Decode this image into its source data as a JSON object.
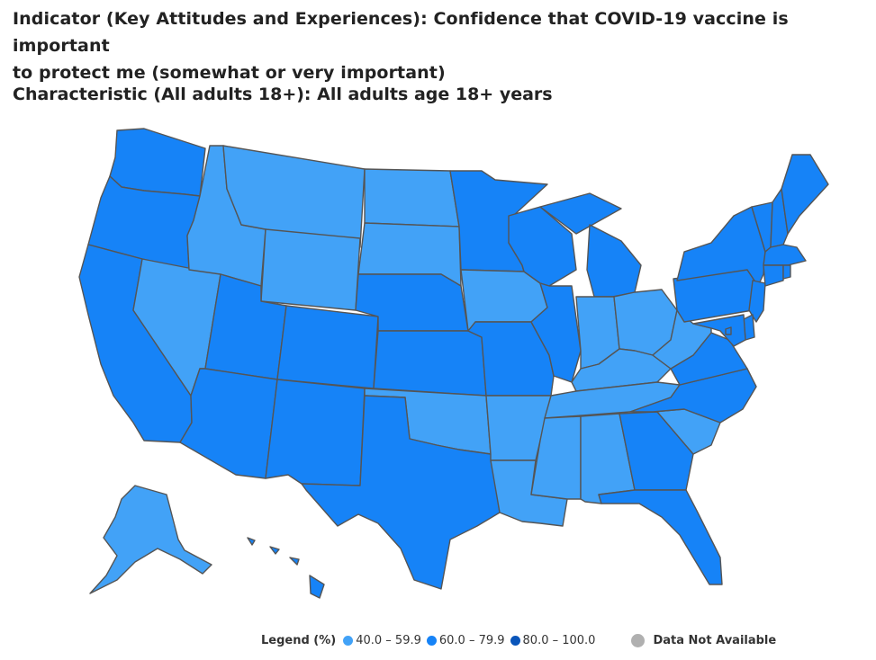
{
  "header": {
    "indicator_line1": "Indicator (Key Attitudes and Experiences):  Confidence that COVID-19 vaccine is important",
    "indicator_line2": "to protect me (somewhat or very important)",
    "characteristic": "Characteristic (All adults 18+):  All adults age 18+ years"
  },
  "legend": {
    "title": "Legend (%)",
    "items": [
      {
        "label": "40.0 – 59.9",
        "color": "#42a2f7"
      },
      {
        "label": "60.0 – 79.9",
        "color": "#1683f7"
      },
      {
        "label": "80.0 – 100.0",
        "color": "#0a55ba"
      }
    ],
    "not_available": {
      "label": "Data Not Available",
      "color": "#b0b0b0"
    }
  },
  "colors": {
    "bin_40_59": "#42a2f7",
    "bin_60_79": "#1683f7",
    "bin_80_100": "#0a55ba",
    "border": "#555555"
  },
  "states": {
    "WA": "60.0 – 79.9",
    "OR": "60.0 – 79.9",
    "CA": "60.0 – 79.9",
    "NV": "40.0 – 59.9",
    "ID": "40.0 – 59.9",
    "MT": "40.0 – 59.9",
    "WY": "40.0 – 59.9",
    "UT": "60.0 – 79.9",
    "AZ": "60.0 – 79.9",
    "CO": "60.0 – 79.9",
    "NM": "60.0 – 79.9",
    "ND": "40.0 – 59.9",
    "SD": "40.0 – 59.9",
    "NE": "60.0 – 79.9",
    "KS": "60.0 – 79.9",
    "OK": "40.0 – 59.9",
    "TX": "60.0 – 79.9",
    "MN": "60.0 – 79.9",
    "IA": "40.0 – 59.9",
    "MO": "60.0 – 79.9",
    "AR": "40.0 – 59.9",
    "LA": "40.0 – 59.9",
    "WI": "60.0 – 79.9",
    "IL": "60.0 – 79.9",
    "MI": "60.0 – 79.9",
    "IN": "40.0 – 59.9",
    "OH": "40.0 – 59.9",
    "KY": "40.0 – 59.9",
    "TN": "40.0 – 59.9",
    "MS": "40.0 – 59.9",
    "AL": "40.0 – 59.9",
    "GA": "60.0 – 79.9",
    "FL": "60.0 – 79.9",
    "SC": "40.0 – 59.9",
    "NC": "60.0 – 79.9",
    "VA": "60.0 – 79.9",
    "WV": "40.0 – 59.9",
    "PA": "60.0 – 79.9",
    "NY": "60.0 – 79.9",
    "VT": "60.0 – 79.9",
    "NH": "60.0 – 79.9",
    "ME": "60.0 – 79.9",
    "MA": "60.0 – 79.9",
    "RI": "60.0 – 79.9",
    "CT": "60.0 – 79.9",
    "NJ": "60.0 – 79.9",
    "DE": "60.0 – 79.9",
    "MD": "60.0 – 79.9",
    "DC": "60.0 – 79.9",
    "AK": "40.0 – 59.9",
    "HI": "60.0 – 79.9"
  }
}
